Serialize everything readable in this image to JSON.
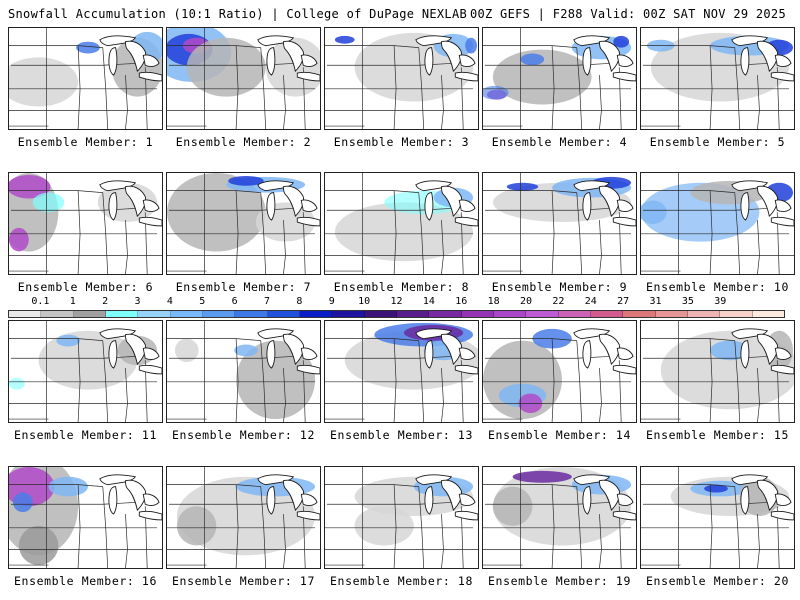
{
  "header": {
    "left": "Snowfall Accumulation (10:1 Ratio) | College of DuPage NEXLAB",
    "right": "00Z GEFS | F288 Valid: 00Z SAT NOV 29 2025"
  },
  "colorbar": {
    "labels": [
      "0.1",
      "1",
      "2",
      "3",
      "4",
      "5",
      "6",
      "7",
      "8",
      "9",
      "10",
      "12",
      "14",
      "16",
      "18",
      "20",
      "22",
      "24",
      "27",
      "31",
      "35",
      "39"
    ],
    "colors": [
      "#e8e8e8",
      "#c4c4c4",
      "#a0a0a0",
      "#80ffff",
      "#96d2fa",
      "#78b9fa",
      "#5a9bf0",
      "#3c78e6",
      "#2050dc",
      "#0a1ec8",
      "#1e14a0",
      "#3c1478",
      "#5a1e8c",
      "#7828a0",
      "#9632b4",
      "#aa46c8",
      "#be5ad2",
      "#cc64b4",
      "#d25a8c",
      "#dc7878",
      "#e69696",
      "#f0b4b4",
      "#f8d2c8",
      "#fde9e0"
    ]
  },
  "panels": [
    {
      "member": "Ensemble Member: 1"
    },
    {
      "member": "Ensemble Member: 2"
    },
    {
      "member": "Ensemble Member: 3"
    },
    {
      "member": "Ensemble Member: 4"
    },
    {
      "member": "Ensemble Member: 5"
    },
    {
      "member": "Ensemble Member: 6"
    },
    {
      "member": "Ensemble Member: 7"
    },
    {
      "member": "Ensemble Member: 8"
    },
    {
      "member": "Ensemble Member: 9"
    },
    {
      "member": "Ensemble Member: 10"
    },
    {
      "member": "Ensemble Member: 11"
    },
    {
      "member": "Ensemble Member: 12"
    },
    {
      "member": "Ensemble Member: 13"
    },
    {
      "member": "Ensemble Member: 14"
    },
    {
      "member": "Ensemble Member: 15"
    },
    {
      "member": "Ensemble Member: 16"
    },
    {
      "member": "Ensemble Member: 17"
    },
    {
      "member": "Ensemble Member: 18"
    },
    {
      "member": "Ensemble Member: 19"
    },
    {
      "member": "Ensemble Member: 20"
    }
  ]
}
